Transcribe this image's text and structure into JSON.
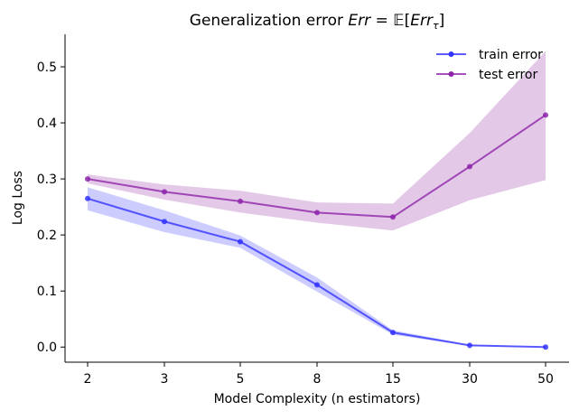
{
  "chart_data": {
    "type": "line",
    "title": {
      "prefix": "Generalization error ",
      "math_lhs": "Err",
      "math_eq": " = ",
      "math_rhs_E": "𝔼",
      "math_rhs_open": "[",
      "math_rhs_err": "Err",
      "math_rhs_sub": "τ",
      "math_rhs_close": "]"
    },
    "xlabel": "Model Complexity (n estimators)",
    "ylabel": "Log Loss",
    "categories": [
      "2",
      "3",
      "5",
      "8",
      "15",
      "30",
      "50"
    ],
    "y_ticks": [
      "0.0",
      "0.1",
      "0.2",
      "0.3",
      "0.4",
      "0.5"
    ],
    "y_tick_values": [
      0.0,
      0.1,
      0.2,
      0.3,
      0.4,
      0.5
    ],
    "ylim": [
      -0.027,
      0.558
    ],
    "grid": false,
    "legend_position": "top-right",
    "series": [
      {
        "name": "train error",
        "color": "#3333ff",
        "band_color": "#9999ff",
        "values": [
          0.265,
          0.224,
          0.188,
          0.111,
          0.026,
          0.003,
          0.0
        ],
        "lower": [
          0.244,
          0.205,
          0.177,
          0.099,
          0.022,
          0.002,
          0.0
        ],
        "upper": [
          0.285,
          0.244,
          0.199,
          0.124,
          0.03,
          0.004,
          0.0
        ]
      },
      {
        "name": "test error",
        "color": "#8e24aa",
        "band_color": "#c792cf",
        "values": [
          0.3,
          0.277,
          0.26,
          0.24,
          0.232,
          0.322,
          0.414
        ],
        "lower": [
          0.292,
          0.263,
          0.24,
          0.222,
          0.208,
          0.262,
          0.298
        ],
        "upper": [
          0.308,
          0.29,
          0.279,
          0.258,
          0.256,
          0.382,
          0.528
        ]
      }
    ]
  }
}
